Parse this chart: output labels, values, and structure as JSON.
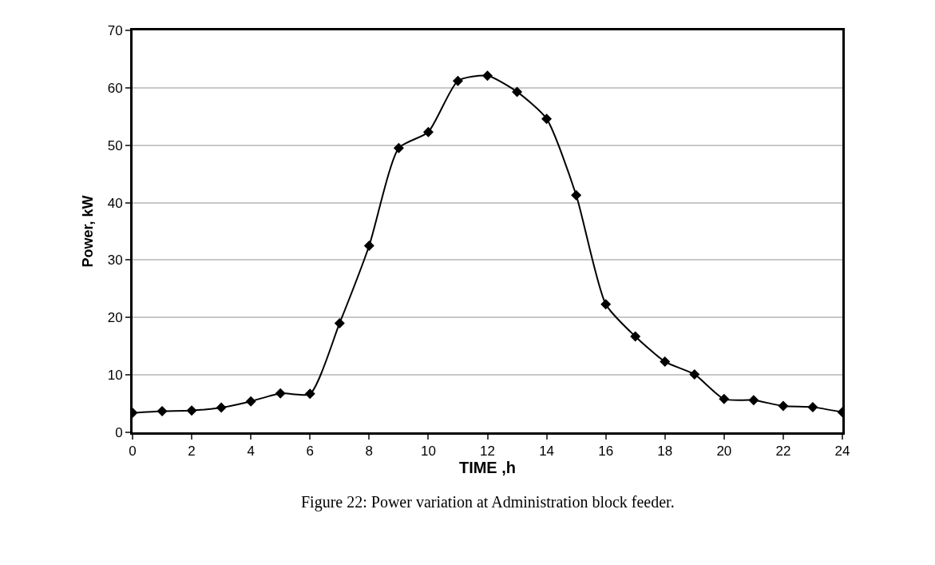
{
  "chart_data": {
    "type": "line",
    "xlabel": "TIME ,h",
    "ylabel": "Power, kW",
    "annotations": [
      "Figure 22: Power variation at Administration block feeder."
    ],
    "x": [
      0,
      1,
      2,
      3,
      4,
      5,
      6,
      7,
      8,
      9,
      10,
      11,
      12,
      13,
      14,
      15,
      16,
      17,
      18,
      19,
      20,
      21,
      22,
      23,
      24
    ],
    "series": [
      {
        "color": "#000000",
        "values": [
          3.4,
          3.7,
          3.8,
          4.3,
          5.4,
          6.8,
          6.7,
          19,
          32.5,
          49.5,
          52.3,
          61.2,
          62.1,
          59.3,
          54.6,
          41.3,
          22.3,
          16.7,
          12.3,
          10.1,
          5.8,
          5.6,
          4.6,
          4.4,
          3.5
        ]
      }
    ],
    "xlim": [
      0,
      24
    ],
    "xticks": [
      0,
      2,
      4,
      6,
      8,
      10,
      12,
      14,
      16,
      18,
      20,
      22,
      24
    ],
    "ylim": [
      0,
      70
    ],
    "yticks": [
      0,
      10,
      20,
      30,
      40,
      50,
      60,
      70
    ],
    "grid": "y",
    "legend": false,
    "marker": "diamond",
    "line_style": "solid"
  }
}
